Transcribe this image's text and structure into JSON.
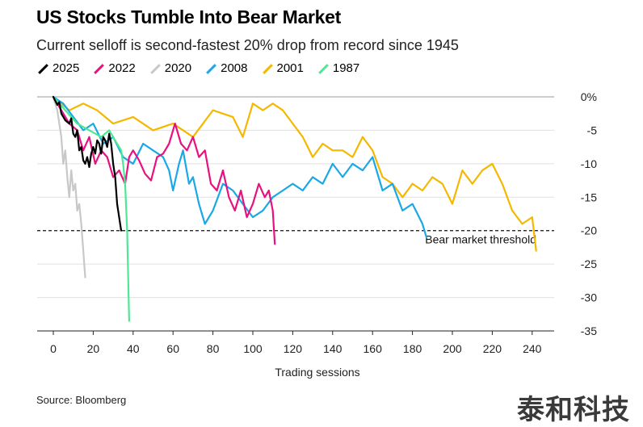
{
  "chart_data": {
    "type": "line",
    "title": "US Stocks Tumble Into Bear Market",
    "subtitle": "Current selloff is second-fastest 20% drop from record since 1945",
    "xlabel": "Trading sessions",
    "ylabel": "",
    "xlim": [
      -4,
      250
    ],
    "ylim": [
      -35,
      0
    ],
    "xticks": [
      0,
      20,
      40,
      60,
      80,
      100,
      120,
      140,
      160,
      180,
      200,
      220,
      240
    ],
    "yticks": [
      0,
      -5,
      -10,
      -15,
      -20,
      -25,
      -30,
      -35
    ],
    "ytick_labels": [
      "0%",
      "-5",
      "-10",
      "-15",
      "-20",
      "-25",
      "-30",
      "-35"
    ],
    "threshold": {
      "value": -20,
      "label": "Bear market threshold"
    },
    "series": [
      {
        "name": "2025",
        "color": "#000000",
        "x": [
          0,
          2,
          3,
          4,
          6,
          8,
          9,
          10,
          11,
          12,
          13,
          14,
          15,
          16,
          17,
          18,
          19,
          20,
          21,
          22,
          23,
          24,
          25,
          26,
          27,
          28,
          29,
          30,
          31,
          32,
          33,
          34
        ],
        "y": [
          0,
          -1.2,
          -0.8,
          -2.5,
          -3.5,
          -4,
          -3.2,
          -5.5,
          -6,
          -5,
          -8,
          -7.5,
          -9.5,
          -10,
          -9,
          -10.5,
          -8.5,
          -7.5,
          -8.5,
          -6.5,
          -7,
          -8.5,
          -6,
          -6.5,
          -7.5,
          -5.5,
          -7,
          -10,
          -12,
          -16,
          -18,
          -20
        ]
      },
      {
        "name": "2022",
        "color": "#e8117f",
        "x": [
          0,
          4,
          8,
          12,
          15,
          18,
          21,
          24,
          27,
          30,
          33,
          36,
          38,
          40,
          43,
          46,
          49,
          52,
          55,
          58,
          61,
          64,
          67,
          70,
          73,
          76,
          79,
          82,
          85,
          88,
          91,
          94,
          97,
          100,
          103,
          106,
          108,
          110,
          111
        ],
        "y": [
          0,
          -2,
          -4,
          -5,
          -8,
          -6,
          -10,
          -8,
          -9,
          -12,
          -11,
          -13,
          -9,
          -8,
          -9.5,
          -11.5,
          -12.5,
          -9,
          -8.5,
          -7,
          -4,
          -7,
          -8,
          -6,
          -9,
          -8,
          -13,
          -14,
          -11,
          -15,
          -17,
          -14,
          -18,
          -16,
          -13,
          -15,
          -14,
          -17,
          -22
        ]
      },
      {
        "name": "2020",
        "color": "#c8c8c8",
        "x": [
          0,
          2,
          4,
          5,
          6,
          7,
          8,
          9,
          10,
          11,
          12,
          13,
          14,
          15,
          16
        ],
        "y": [
          0,
          -2,
          -6,
          -10,
          -8,
          -12,
          -15,
          -11,
          -14,
          -13,
          -17,
          -16,
          -19,
          -23,
          -27
        ]
      },
      {
        "name": "2008",
        "color": "#1aa8e6",
        "x": [
          0,
          5,
          10,
          15,
          20,
          25,
          30,
          35,
          40,
          45,
          50,
          55,
          58,
          60,
          63,
          65,
          68,
          70,
          73,
          76,
          80,
          85,
          90,
          95,
          100,
          105,
          110,
          115,
          120,
          125,
          130,
          135,
          140,
          145,
          150,
          155,
          160,
          165,
          170,
          175,
          180,
          185,
          187
        ],
        "y": [
          0,
          -1,
          -3,
          -5,
          -4,
          -7,
          -6,
          -9,
          -10,
          -7,
          -8,
          -9,
          -11,
          -14,
          -10,
          -8,
          -13,
          -12,
          -16,
          -19,
          -17,
          -13,
          -14,
          -16,
          -18,
          -17,
          -15,
          -14,
          -13,
          -14,
          -12,
          -13,
          -10,
          -12,
          -10,
          -11,
          -9,
          -14,
          -13,
          -17,
          -16,
          -19,
          -21
        ]
      },
      {
        "name": "2001",
        "color": "#f5b800",
        "x": [
          0,
          8,
          15,
          22,
          30,
          40,
          50,
          60,
          70,
          80,
          90,
          95,
          100,
          105,
          110,
          115,
          120,
          125,
          130,
          135,
          140,
          145,
          150,
          155,
          160,
          165,
          170,
          175,
          180,
          185,
          190,
          195,
          200,
          205,
          210,
          215,
          220,
          225,
          230,
          235,
          240,
          242
        ],
        "y": [
          0,
          -2,
          -1,
          -2,
          -4,
          -3,
          -5,
          -4,
          -6,
          -2,
          -3,
          -6,
          -1,
          -2,
          -1,
          -2,
          -4,
          -6,
          -9,
          -7,
          -8,
          -8,
          -9,
          -6,
          -8,
          -12,
          -13,
          -15,
          -13,
          -14,
          -12,
          -13,
          -16,
          -11,
          -13,
          -11,
          -10,
          -13,
          -17,
          -19,
          -18,
          -23
        ]
      },
      {
        "name": "1987",
        "color": "#4ee895",
        "x": [
          0,
          6,
          12,
          18,
          24,
          28,
          32,
          34,
          35,
          36,
          37,
          38
        ],
        "y": [
          0,
          -2,
          -4,
          -5,
          -6,
          -5,
          -7,
          -8,
          -10,
          -13,
          -20,
          -33.5
        ]
      }
    ]
  },
  "source": "Source: Bloomberg",
  "watermark": "泰和科技"
}
